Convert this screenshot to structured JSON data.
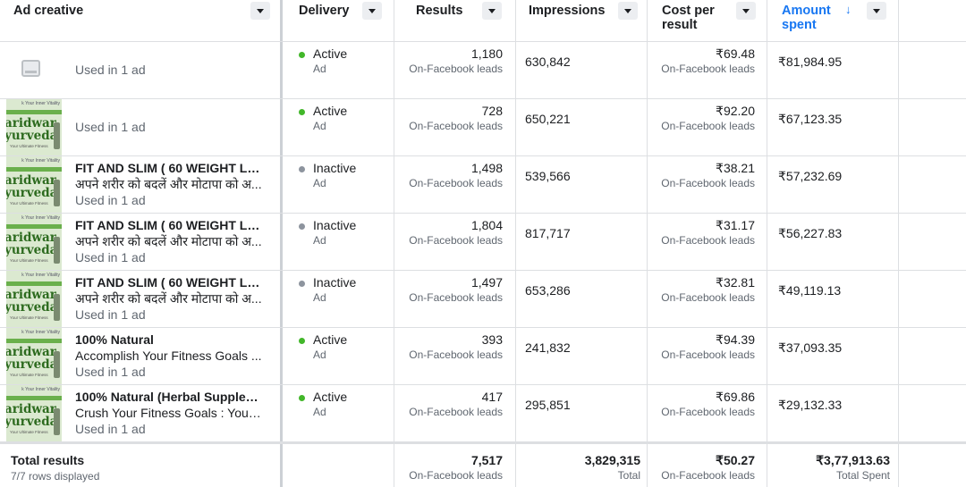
{
  "columns": {
    "ad_creative": "Ad creative",
    "delivery": "Delivery",
    "results": "Results",
    "impressions": "Impressions",
    "cost_per_result_line1": "Cost per",
    "cost_per_result_line2": "result",
    "amount_spent_line1": "Amount",
    "amount_spent_line2": "spent",
    "sort_indicator": "↓"
  },
  "thumbnail_text": {
    "top": "k Your Inner Vitality",
    "line1": "aridwar",
    "line2": "yurveda",
    "bottom": "Your Ultimate Fitness"
  },
  "rows": [
    {
      "title": "",
      "body": "",
      "used": "Used in 1 ad",
      "status": "Active",
      "level": "Ad",
      "results": "1,180",
      "results_type": "On-Facebook leads",
      "impressions": "630,842",
      "cost": "₹69.48",
      "cost_type": "On-Facebook leads",
      "spent": "₹81,984.95"
    },
    {
      "title": "",
      "body": "",
      "used": "Used in 1 ad",
      "status": "Active",
      "level": "Ad",
      "results": "728",
      "results_type": "On-Facebook leads",
      "impressions": "650,221",
      "cost": "₹92.20",
      "cost_type": "On-Facebook leads",
      "spent": "₹67,123.35"
    },
    {
      "title": "FIT AND SLIM ( 60 WEIGHT LO...",
      "body": "अपने शरीर को बदलें और मोटापा को अ...",
      "used": "Used in 1 ad",
      "status": "Inactive",
      "level": "Ad",
      "results": "1,498",
      "results_type": "On-Facebook leads",
      "impressions": "539,566",
      "cost": "₹38.21",
      "cost_type": "On-Facebook leads",
      "spent": "₹57,232.69"
    },
    {
      "title": "FIT AND SLIM ( 60 WEIGHT LO...",
      "body": "अपने शरीर को बदलें और मोटापा को अ...",
      "used": "Used in 1 ad",
      "status": "Inactive",
      "level": "Ad",
      "results": "1,804",
      "results_type": "On-Facebook leads",
      "impressions": "817,717",
      "cost": "₹31.17",
      "cost_type": "On-Facebook leads",
      "spent": "₹56,227.83"
    },
    {
      "title": "FIT AND SLIM ( 60 WEIGHT LO...",
      "body": "अपने शरीर को बदलें और मोटापा को अ...",
      "used": "Used in 1 ad",
      "status": "Inactive",
      "level": "Ad",
      "results": "1,497",
      "results_type": "On-Facebook leads",
      "impressions": "653,286",
      "cost": "₹32.81",
      "cost_type": "On-Facebook leads",
      "spent": "₹49,119.13"
    },
    {
      "title": "100% Natural",
      "body": "Accomplish Your Fitness Goals ...",
      "used": "Used in 1 ad",
      "status": "Active",
      "level": "Ad",
      "results": "393",
      "results_type": "On-Facebook leads",
      "impressions": "241,832",
      "cost": "₹94.39",
      "cost_type": "On-Facebook leads",
      "spent": "₹37,093.35"
    },
    {
      "title": "100% Natural (Herbal Supplem...",
      "body": "Crush Your Fitness Goals : Your ...",
      "used": "Used in 1 ad",
      "status": "Active",
      "level": "Ad",
      "results": "417",
      "results_type": "On-Facebook leads",
      "impressions": "295,851",
      "cost": "₹69.86",
      "cost_type": "On-Facebook leads",
      "spent": "₹29,132.33"
    }
  ],
  "totals": {
    "label": "Total results",
    "rows_displayed": "7/7 rows displayed",
    "results": "7,517",
    "results_type": "On-Facebook leads",
    "impressions": "3,829,315",
    "impressions_type": "Total",
    "cost": "₹50.27",
    "cost_type": "On-Facebook leads",
    "spent": "₹3,77,913.63",
    "spent_type": "Total Spent"
  },
  "colors": {
    "active_dot": "#42b72a",
    "inactive_dot": "#8d949e",
    "sorted_header": "#1877f2"
  },
  "icons": {
    "column_menu": "chevron-down-icon",
    "sort": "arrow-down-icon",
    "no_preview": "image-placeholder-icon"
  }
}
